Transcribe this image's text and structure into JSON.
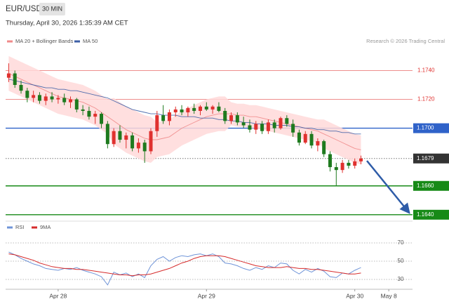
{
  "chart_data": [
    {
      "type": "candlestick",
      "title": "EUR/USD",
      "timeframe": "30 MIN",
      "subtitle": "Thursday, April 30, 2026 1:35:39 AM CET",
      "source": "Research © 2026 Trading Central",
      "xlim": [
        -0.5,
        65
      ],
      "xticks": [
        {
          "value": 8,
          "label": "Apr 28"
        },
        {
          "value": 32,
          "label": "Apr 29"
        },
        {
          "value": 56,
          "label": "Apr 30"
        },
        {
          "value": 61.5,
          "label": "May 8"
        }
      ],
      "ylim": [
        1.1637,
        1.1767
      ],
      "up_color": "#e0312f",
      "down_color": "#1e7a1e",
      "levels": [
        {
          "value": 1.174,
          "label": "1.1740",
          "color": "#e0312f",
          "boxed": false
        },
        {
          "value": 1.172,
          "label": "1.1720",
          "color": "#e0312f",
          "boxed": false
        },
        {
          "value": 1.17,
          "label": "1.1700",
          "color": "#2f62c9",
          "boxed": true
        },
        {
          "value": 1.1679,
          "label": "1.1679",
          "color": "#333333",
          "boxed": true,
          "dotted": true
        },
        {
          "value": 1.166,
          "label": "1.1660",
          "color": "#178a17",
          "boxed": true
        },
        {
          "value": 1.164,
          "label": "1.1640",
          "color": "#178a17",
          "boxed": true
        }
      ],
      "candles": {
        "open": [
          1.1735,
          1.1738,
          1.173,
          1.1726,
          1.1721,
          1.1723,
          1.1719,
          1.1722,
          1.172,
          1.1721,
          1.1718,
          1.172,
          1.1713,
          1.1712,
          1.1708,
          1.171,
          1.1703,
          1.1689,
          1.1698,
          1.1692,
          1.1695,
          1.1686,
          1.169,
          1.1684,
          1.1698,
          1.1709,
          1.1705,
          1.1711,
          1.1713,
          1.1711,
          1.1714,
          1.1712,
          1.1715,
          1.1713,
          1.1715,
          1.1712,
          1.1705,
          1.1709,
          1.1704,
          1.1702,
          1.1699,
          1.1703,
          1.1698,
          1.1704,
          1.17,
          1.1707,
          1.1703,
          1.1697,
          1.169,
          1.1696,
          1.1688,
          1.1691,
          1.1682,
          1.1673,
          1.1671,
          1.1676,
          1.1674,
          1.1677
        ],
        "high": [
          1.1745,
          1.174,
          1.1733,
          1.1728,
          1.1726,
          1.1725,
          1.1724,
          1.1725,
          1.1723,
          1.1724,
          1.1722,
          1.1721,
          1.1716,
          1.1715,
          1.1712,
          1.1711,
          1.1705,
          1.17,
          1.1702,
          1.1697,
          1.1697,
          1.1693,
          1.1692,
          1.17,
          1.1712,
          1.1716,
          1.1713,
          1.1715,
          1.1716,
          1.1715,
          1.1717,
          1.1716,
          1.1718,
          1.1716,
          1.1718,
          1.1714,
          1.1711,
          1.1711,
          1.1708,
          1.1706,
          1.1705,
          1.1705,
          1.1706,
          1.1706,
          1.1708,
          1.1709,
          1.1706,
          1.1699,
          1.1698,
          1.1698,
          1.1693,
          1.1692,
          1.1684,
          1.1676,
          1.1678,
          1.1678,
          1.1679,
          1.1681
        ],
        "low": [
          1.1732,
          1.1728,
          1.1724,
          1.1718,
          1.1718,
          1.1717,
          1.1716,
          1.1718,
          1.1717,
          1.1716,
          1.1714,
          1.1711,
          1.1709,
          1.1706,
          1.1703,
          1.17,
          1.1686,
          1.1687,
          1.169,
          1.1686,
          1.1684,
          1.1683,
          1.1676,
          1.1682,
          1.1694,
          1.1703,
          1.1702,
          1.1708,
          1.1709,
          1.1708,
          1.171,
          1.1709,
          1.1712,
          1.171,
          1.1711,
          1.1703,
          1.1703,
          1.1702,
          1.17,
          1.1697,
          1.1696,
          1.1696,
          1.1696,
          1.1697,
          1.1699,
          1.1701,
          1.1694,
          1.1688,
          1.1689,
          1.1686,
          1.1684,
          1.168,
          1.167,
          1.166,
          1.1669,
          1.1672,
          1.1672,
          1.1675
        ],
        "close": [
          1.1738,
          1.173,
          1.1726,
          1.1721,
          1.1723,
          1.1719,
          1.1722,
          1.172,
          1.1721,
          1.1718,
          1.172,
          1.1713,
          1.1712,
          1.1708,
          1.171,
          1.1703,
          1.1689,
          1.1698,
          1.1692,
          1.1695,
          1.1686,
          1.169,
          1.1684,
          1.1698,
          1.1709,
          1.1705,
          1.1711,
          1.1713,
          1.1711,
          1.1714,
          1.1712,
          1.1715,
          1.1713,
          1.1715,
          1.1712,
          1.1705,
          1.1709,
          1.1704,
          1.1702,
          1.1699,
          1.1703,
          1.1698,
          1.1704,
          1.17,
          1.1707,
          1.1703,
          1.1697,
          1.169,
          1.1696,
          1.1688,
          1.1691,
          1.1682,
          1.1673,
          1.1671,
          1.1676,
          1.1674,
          1.1677,
          1.1679
        ]
      },
      "series": [
        {
          "name": "MA 20 + Bollinger Bands",
          "color": "#f08a8a",
          "band_color": "#ffd9d9",
          "values": [
            1.1738,
            1.1736,
            1.1734,
            1.1732,
            1.173,
            1.1728,
            1.1726,
            1.1724,
            1.1722,
            1.1721,
            1.172,
            1.1719,
            1.1718,
            1.1716,
            1.1714,
            1.1711,
            1.1708,
            1.1705,
            1.1702,
            1.1699,
            1.1697,
            1.1695,
            1.1693,
            1.1692,
            1.1692,
            1.1693,
            1.1694,
            1.1697,
            1.17,
            1.1702,
            1.1704,
            1.1706,
            1.1708,
            1.1709,
            1.171,
            1.171,
            1.171,
            1.1709,
            1.1709,
            1.1708,
            1.1708,
            1.1707,
            1.1706,
            1.1705,
            1.1704,
            1.1703,
            1.1702,
            1.1701,
            1.17,
            1.1699,
            1.1698,
            1.1696,
            1.1694,
            1.1692,
            1.169,
            1.1688,
            1.1686,
            1.1685
          ],
          "upper": [
            1.175,
            1.1748,
            1.1746,
            1.1744,
            1.1742,
            1.174,
            1.1738,
            1.1736,
            1.1734,
            1.1733,
            1.1732,
            1.1731,
            1.173,
            1.1728,
            1.1726,
            1.1723,
            1.172,
            1.1721,
            1.1718,
            1.1715,
            1.1713,
            1.1711,
            1.1709,
            1.1708,
            1.1704,
            1.1705,
            1.1706,
            1.1709,
            1.1712,
            1.1714,
            1.1716,
            1.1718,
            1.172,
            1.1721,
            1.1722,
            1.1722,
            1.1718,
            1.1717,
            1.1717,
            1.1716,
            1.1716,
            1.1715,
            1.1714,
            1.1713,
            1.1712,
            1.1711,
            1.171,
            1.1709,
            1.1708,
            1.1707,
            1.1706,
            1.1706,
            1.1704,
            1.1702,
            1.17,
            1.1698,
            1.1696,
            1.1695
          ],
          "lower": [
            1.1726,
            1.1724,
            1.1722,
            1.172,
            1.1718,
            1.1716,
            1.1714,
            1.1712,
            1.171,
            1.1709,
            1.1708,
            1.1707,
            1.1706,
            1.1704,
            1.1702,
            1.1699,
            1.1696,
            1.1689,
            1.1686,
            1.1683,
            1.1681,
            1.1679,
            1.1677,
            1.1676,
            1.168,
            1.1681,
            1.1682,
            1.1685,
            1.1688,
            1.169,
            1.1692,
            1.1694,
            1.1696,
            1.1697,
            1.1698,
            1.1698,
            1.1702,
            1.1701,
            1.1701,
            1.17,
            1.17,
            1.1699,
            1.1698,
            1.1697,
            1.1696,
            1.1695,
            1.1694,
            1.1693,
            1.1692,
            1.1691,
            1.169,
            1.1686,
            1.1684,
            1.1682,
            1.168,
            1.1678,
            1.1676,
            1.1675
          ]
        },
        {
          "name": "MA 50",
          "color": "#3d5fa6",
          "values": [
            1.1734,
            1.1733,
            1.1732,
            1.1731,
            1.173,
            1.1729,
            1.1728,
            1.1728,
            1.1727,
            1.1727,
            1.1726,
            1.1726,
            1.1725,
            1.1724,
            1.1723,
            1.1722,
            1.1721,
            1.1719,
            1.1717,
            1.1715,
            1.1713,
            1.1712,
            1.1711,
            1.171,
            1.171,
            1.1709,
            1.1709,
            1.1709,
            1.1708,
            1.1708,
            1.1708,
            1.1707,
            1.1707,
            1.1707,
            1.1706,
            1.1706,
            1.1705,
            1.1705,
            1.1704,
            1.1704,
            1.1703,
            1.1703,
            1.1703,
            1.1702,
            1.1702,
            1.1702,
            1.1701,
            1.1701,
            1.17,
            1.17,
            1.1699,
            1.1699,
            1.1698,
            1.1698,
            1.1697,
            1.1697,
            1.1696,
            1.1696
          ]
        }
      ]
    },
    {
      "type": "line",
      "xlim": [
        -0.5,
        65
      ],
      "ylim": [
        20,
        90
      ],
      "yticks": [
        70,
        50,
        30
      ],
      "series": [
        {
          "name": "RSI",
          "color": "#6f94d8",
          "values": [
            60,
            57,
            53,
            50,
            47,
            45,
            42,
            41,
            40,
            42,
            41,
            43,
            40,
            38,
            36,
            33,
            24,
            38,
            35,
            37,
            33,
            36,
            32,
            45,
            52,
            55,
            50,
            54,
            56,
            55,
            57,
            58,
            56,
            58,
            55,
            48,
            47,
            45,
            42,
            40,
            43,
            41,
            45,
            43,
            48,
            47,
            40,
            36,
            41,
            38,
            42,
            39,
            33,
            32,
            37,
            36,
            40,
            43
          ]
        },
        {
          "name": "9MA",
          "color": "#d62b2b",
          "values": [
            58,
            57,
            55,
            53,
            51,
            48,
            46,
            44,
            43,
            42,
            42,
            41,
            41,
            40,
            39,
            38,
            37,
            36,
            35,
            35,
            34,
            35,
            35,
            36,
            38,
            40,
            42,
            45,
            48,
            50,
            53,
            55,
            56,
            56,
            56,
            55,
            53,
            51,
            49,
            47,
            45,
            44,
            43,
            43,
            43,
            44,
            43,
            42,
            42,
            41,
            41,
            40,
            39,
            38,
            37,
            36,
            36,
            37
          ]
        }
      ]
    }
  ]
}
